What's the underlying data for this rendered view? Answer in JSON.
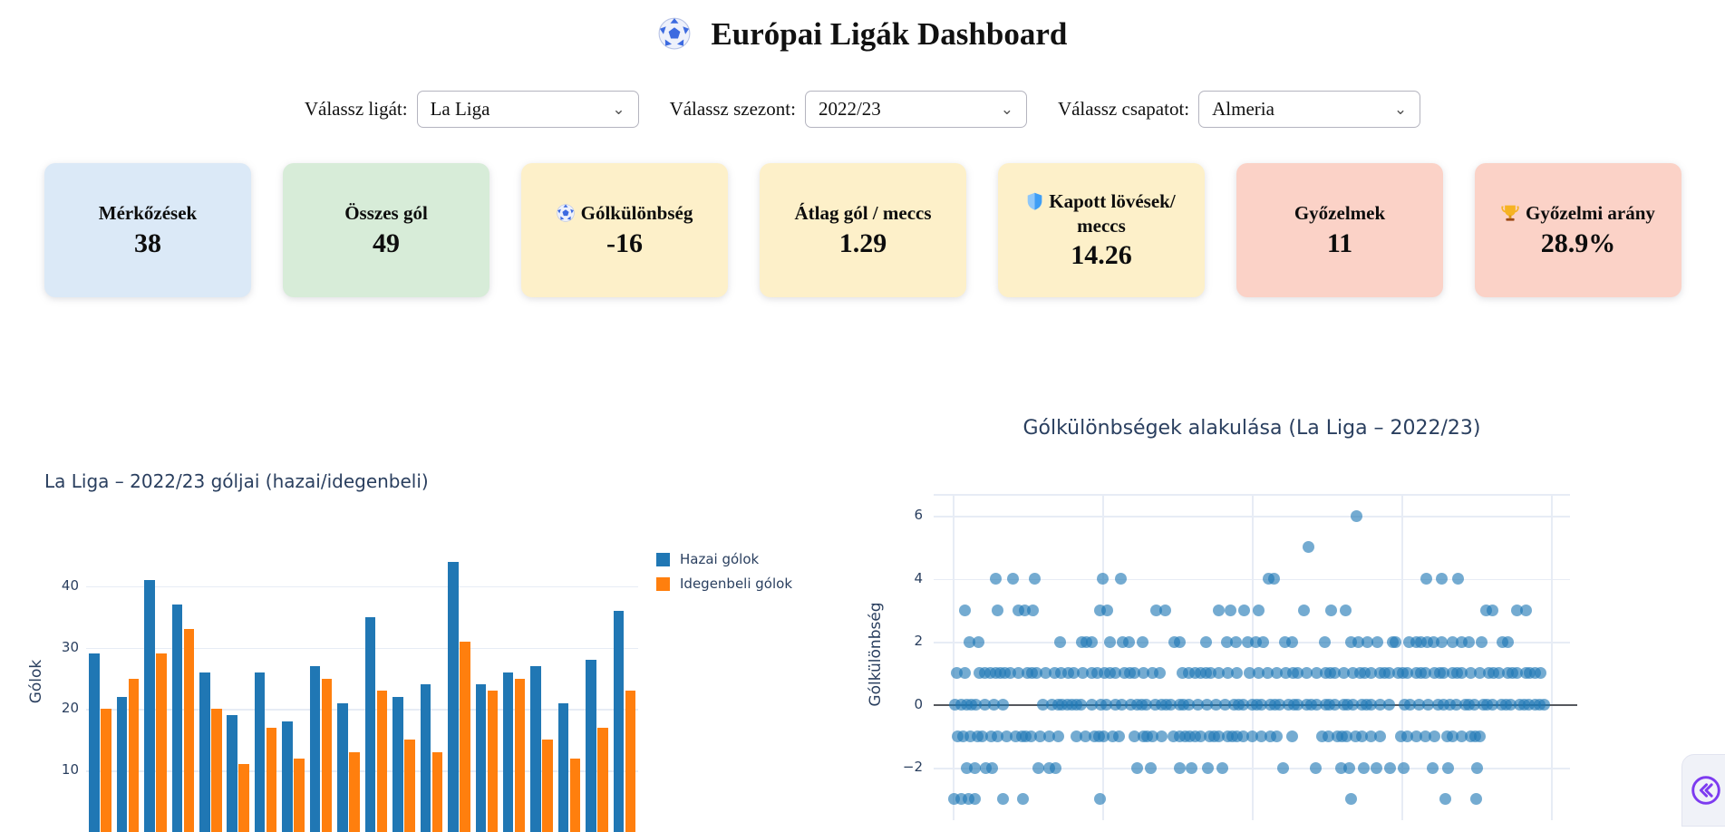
{
  "page": {
    "title": "Európai Ligák Dashboard",
    "title_icon": "soccer-ball-icon"
  },
  "controls": [
    {
      "label": "Válassz ligát:",
      "value": "La Liga"
    },
    {
      "label": "Válassz szezont:",
      "value": "2022/23"
    },
    {
      "label": "Válassz csapatot:",
      "value": "Almeria"
    }
  ],
  "cards": [
    {
      "label": "Mérkőzések",
      "value": "38",
      "bg": "#dbe9f7",
      "icon": ""
    },
    {
      "label": "Összes gól",
      "value": "49",
      "bg": "#d7ecd8",
      "icon": ""
    },
    {
      "label": "Gólkülönbség",
      "value": "-16",
      "bg": "#fdf0c9",
      "icon": "soccer-ball-icon"
    },
    {
      "label": "Átlag gól / meccs",
      "value": "1.29",
      "bg": "#fdf0c9",
      "icon": ""
    },
    {
      "label": "Kapott lövések/ meccs",
      "value": "14.26",
      "bg": "#fdf0c9",
      "icon": "shield-icon"
    },
    {
      "label": "Győzelmek",
      "value": "11",
      "bg": "#fbd2c7",
      "icon": ""
    },
    {
      "label": "Győzelmi arány",
      "value": "28.9%",
      "bg": "#fbd2c7",
      "icon": "trophy-icon"
    }
  ],
  "expander": {
    "icon": "collapse-chevrons-icon",
    "color": "#7d3bf0"
  },
  "chart_data": [
    {
      "type": "bar",
      "title": "La Liga – 2022/23 góljai (hazai/idegenbeli)",
      "xlabel": "",
      "ylabel": "Gólok",
      "yticks": [
        10,
        20,
        30,
        40
      ],
      "ylim": [
        0,
        46
      ],
      "grid": true,
      "legend_position": "right-of-plot",
      "colors": {
        "hazai": "#2077b4",
        "idegenbeli": "#ff7f0e"
      },
      "series": [
        {
          "name": "Hazai gólok",
          "values": [
            29,
            22,
            41,
            37,
            26,
            19,
            26,
            18,
            27,
            21,
            35,
            22,
            24,
            44,
            24,
            26,
            27,
            21,
            28,
            36
          ]
        },
        {
          "name": "Idegenbeli gólok",
          "values": [
            20,
            25,
            29,
            33,
            20,
            11,
            17,
            12,
            25,
            13,
            23,
            15,
            13,
            31,
            23,
            25,
            15,
            12,
            17,
            23
          ]
        }
      ]
    },
    {
      "type": "scatter",
      "title": "Gólkülönbségek alakulása (La Liga – 2022/23)",
      "xlabel": "",
      "ylabel": "Gólkülönbség",
      "yticks": [
        -2,
        0,
        2,
        4,
        6
      ],
      "ylim_visible": [
        -3.5,
        7
      ],
      "zero_line": true,
      "grid": true,
      "marker_color": "#1f77b4",
      "marker_opacity": 0.62,
      "points_by_goal_diff": [
        {
          "gd": 6,
          "x_pct": [
            66.6
          ]
        },
        {
          "gd": 5,
          "x_pct": [
            58.7
          ]
        },
        {
          "gd": 4,
          "x_pct": [
            7.2,
            10.0,
            13.7,
            24.9,
            27.8,
            52.2,
            53.0,
            78.2,
            80.6,
            83.3
          ]
        },
        {
          "gd": 3,
          "x_pct": [
            2.1,
            7.6,
            10.9,
            12.0,
            13.3,
            24.4,
            25.6,
            33.7,
            35.1,
            43.9,
            45.9,
            48.2,
            50.5,
            58.0,
            62.4,
            64.9,
            88.0,
            89.0,
            93.1,
            94.6
          ]
        },
        {
          "gd": 2,
          "x_pct": [
            2.9,
            4.4,
            17.9,
            21.4,
            22.1,
            23.1,
            26.0,
            28.1,
            29.2,
            31.4,
            36.6,
            37.5,
            41.8,
            45.3,
            46.8,
            48.7,
            50.0,
            51.3,
            54.9,
            56.1,
            61.4,
            65.7,
            67.0,
            68.4,
            70.1,
            72.6,
            73.0,
            75.3,
            76.5,
            77.3,
            78.3,
            79.4,
            80.6,
            82.4,
            84.0,
            85.2,
            87.3,
            90.6,
            91.5
          ]
        },
        {
          "gd": 1,
          "x_pct": [
            0.8,
            2.2,
            4.5,
            5.4,
            6.3,
            7.2,
            8.0,
            8.8,
            9.6,
            11.0,
            12.5,
            13.2,
            14.0,
            15.5,
            17.0,
            18.0,
            19.2,
            20.0,
            21.5,
            23.0,
            24.0,
            25.2,
            26.0,
            27.0,
            28.5,
            29.3,
            30.0,
            31.5,
            33.0,
            34.2,
            38.0,
            39.0,
            40.0,
            41.0,
            41.8,
            42.6,
            44.0,
            45.5,
            47.0,
            49.0,
            50.5,
            52.0,
            53.5,
            55.0,
            56.2,
            57.0,
            58.5,
            60.0,
            61.5,
            62.3,
            63.0,
            64.5,
            66.0,
            67.2,
            68.0,
            69.0,
            70.5,
            71.3,
            72.0,
            73.5,
            74.2,
            75.0,
            76.5,
            77.3,
            78.0,
            79.5,
            80.3,
            81.0,
            82.5,
            83.2,
            84.0,
            85.5,
            87.0,
            88.5,
            89.2,
            90.0,
            91.5,
            92.3,
            93.0,
            94.5,
            95.2,
            96.0,
            97.0
          ]
        },
        {
          "gd": 0,
          "x_pct": [
            0.5,
            1.5,
            2.5,
            3.2,
            4.0,
            5.5,
            7.0,
            8.5,
            15.0,
            16.5,
            17.5,
            18.2,
            19.0,
            19.8,
            20.5,
            21.3,
            23.0,
            24.5,
            25.5,
            27.0,
            28.0,
            29.5,
            30.5,
            31.2,
            32.0,
            33.5,
            34.5,
            35.3,
            36.0,
            37.5,
            38.2,
            39.0,
            40.5,
            42.0,
            43.5,
            45.0,
            46.5,
            47.2,
            48.0,
            49.5,
            50.2,
            51.0,
            52.5,
            53.2,
            54.0,
            55.5,
            56.3,
            57.0,
            58.5,
            59.2,
            60.0,
            61.5,
            62.2,
            63.0,
            64.5,
            65.2,
            66.0,
            67.5,
            68.3,
            69.0,
            70.5,
            72.0,
            74.5,
            75.5,
            77.0,
            78.5,
            80.0,
            81.0,
            82.0,
            83.0,
            84.5,
            85.2,
            86.0,
            87.5,
            88.2,
            89.0,
            90.5,
            91.2,
            92.0,
            93.5,
            94.2,
            95.0,
            96.0,
            96.8,
            97.5
          ]
        },
        {
          "gd": -1,
          "x_pct": [
            1.0,
            1.8,
            3.0,
            4.2,
            5.0,
            6.5,
            7.5,
            9.0,
            10.5,
            11.5,
            12.2,
            13.0,
            14.5,
            16.0,
            17.5,
            20.5,
            22.0,
            23.5,
            24.2,
            25.0,
            26.5,
            27.5,
            30.0,
            31.5,
            32.2,
            33.0,
            34.5,
            36.5,
            37.5,
            38.5,
            39.2,
            40.0,
            41.0,
            42.5,
            43.2,
            44.0,
            45.5,
            46.2,
            47.0,
            48.0,
            49.5,
            51.0,
            52.5,
            53.5,
            56.0,
            61.0,
            62.0,
            63.5,
            64.2,
            65.0,
            66.5,
            67.5,
            69.0,
            70.5,
            74.0,
            75.0,
            76.5,
            78.0,
            79.5,
            81.5,
            82.5,
            84.0,
            85.5,
            86.2,
            87.0
          ]
        },
        {
          "gd": -2,
          "x_pct": [
            2.5,
            3.8,
            5.6,
            6.7,
            14.3,
            16.0,
            17.1,
            30.5,
            32.8,
            37.5,
            39.5,
            42.2,
            44.5,
            54.5,
            59.9,
            64.1,
            65.5,
            67.8,
            69.9,
            72.2,
            74.4,
            79.2,
            81.7,
            86.5
          ]
        },
        {
          "gd": -3,
          "x_pct": [
            0.4,
            1.5,
            2.7,
            3.8,
            8.4,
            11.7,
            24.4,
            65.7,
            81.3,
            86.3
          ]
        }
      ]
    }
  ]
}
